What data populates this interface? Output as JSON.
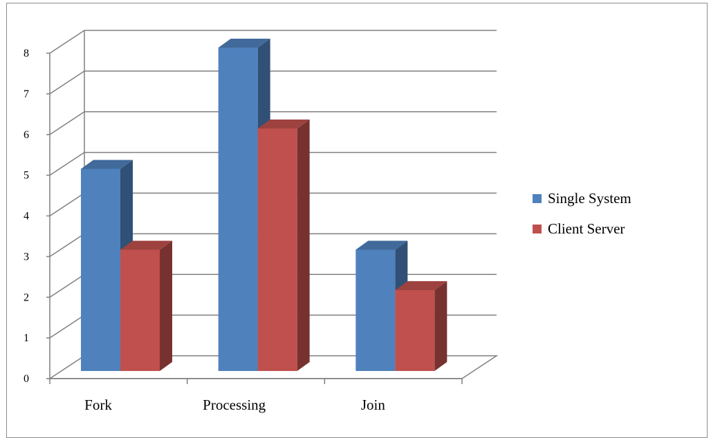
{
  "chart_data": {
    "type": "bar",
    "categories": [
      "Fork",
      "Processing",
      "Join"
    ],
    "series": [
      {
        "name": "Single System",
        "values": [
          5,
          8,
          3
        ],
        "color": "#4f81bd"
      },
      {
        "name": "Client Server",
        "values": [
          3,
          6,
          2
        ],
        "color": "#c0504d"
      }
    ],
    "title": "",
    "xlabel": "",
    "ylabel": "",
    "ylim": [
      0,
      8
    ],
    "yticks": [
      "0",
      "1",
      "2",
      "3",
      "4",
      "5",
      "6",
      "7",
      "8"
    ],
    "grid": true,
    "legend_position": "right"
  }
}
